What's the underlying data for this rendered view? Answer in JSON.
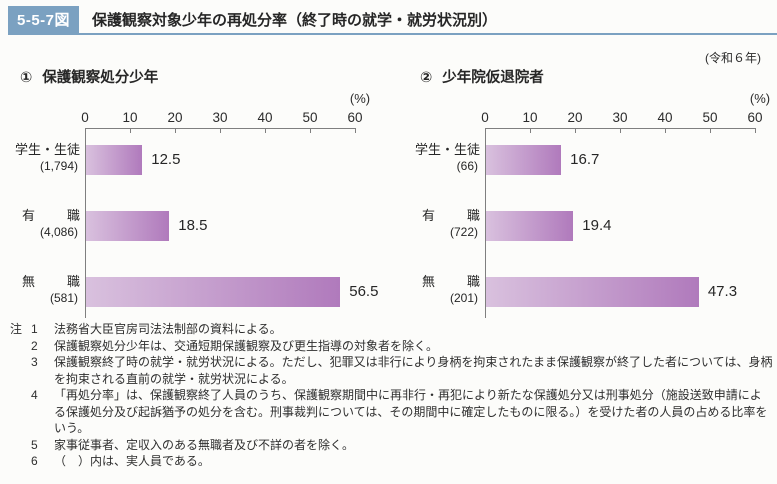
{
  "header": {
    "figure_no": "5-5-7図",
    "title": "保護観察対象少年の再処分率（終了時の就学・就労状況別）",
    "year_label": "(令和６年)"
  },
  "charts": [
    {
      "heading_no": "①",
      "heading": "保護観察処分少年",
      "unit": "(%)",
      "axis_ticks": [
        0,
        10,
        20,
        30,
        40,
        50,
        60
      ],
      "rows": [
        {
          "label": [
            "学生・生徒"
          ],
          "count": "(1,794)",
          "value": 12.5
        },
        {
          "label": [
            "有",
            "職"
          ],
          "count": "(4,086)",
          "value": 18.5
        },
        {
          "label": [
            "無",
            "職"
          ],
          "count": "(581)",
          "value": 56.5
        }
      ]
    },
    {
      "heading_no": "②",
      "heading": "少年院仮退院者",
      "unit": "(%)",
      "axis_ticks": [
        0,
        10,
        20,
        30,
        40,
        50,
        60
      ],
      "rows": [
        {
          "label": [
            "学生・生徒"
          ],
          "count": "(66)",
          "value": 16.7
        },
        {
          "label": [
            "有",
            "職"
          ],
          "count": "(722)",
          "value": 19.4
        },
        {
          "label": [
            "無",
            "職"
          ],
          "count": "(201)",
          "value": 47.3
        }
      ]
    }
  ],
  "chart_data": [
    {
      "type": "bar",
      "orientation": "horizontal",
      "title": "① 保護観察処分少年",
      "categories": [
        "学生・生徒 (1,794)",
        "有職 (4,086)",
        "無職 (581)"
      ],
      "values": [
        12.5,
        18.5,
        56.5
      ],
      "xlabel": "(%)",
      "xlim": [
        0,
        60
      ],
      "xticks": [
        0,
        10,
        20,
        30,
        40,
        50,
        60
      ],
      "grid": false,
      "data_labels": [
        "12.5",
        "18.5",
        "56.5"
      ]
    },
    {
      "type": "bar",
      "orientation": "horizontal",
      "title": "② 少年院仮退院者",
      "categories": [
        "学生・生徒 (66)",
        "有職 (722)",
        "無職 (201)"
      ],
      "values": [
        16.7,
        19.4,
        47.3
      ],
      "xlabel": "(%)",
      "xlim": [
        0,
        60
      ],
      "xticks": [
        0,
        10,
        20,
        30,
        40,
        50,
        60
      ],
      "grid": false,
      "data_labels": [
        "16.7",
        "19.4",
        "47.3"
      ]
    }
  ],
  "notes": {
    "prefix": "注",
    "items": [
      {
        "num": "1",
        "text": "法務省大臣官房司法法制部の資料による。"
      },
      {
        "num": "2",
        "text": "保護観察処分少年は、交通短期保護観察及び更生指導の対象者を除く。"
      },
      {
        "num": "3",
        "text": "保護観察終了時の就学・就労状況による。ただし、犯罪又は非行により身柄を拘束されたまま保護観察が終了した者については、身柄を拘束される直前の就学・就労状況による。"
      },
      {
        "num": "4",
        "text": "「再処分率」は、保護観察終了人員のうち、保護観察期間中に再非行・再犯により新たな保護処分又は刑事処分（施設送致申請による保護処分及び起訴猶予の処分を含む。刑事裁判については、その期間中に確定したものに限る。）を受けた者の人員の占める比率をいう。"
      },
      {
        "num": "5",
        "text": "家事従事者、定収入のある無職者及び不詳の者を除く。"
      },
      {
        "num": "6",
        "text": "（　）内は、実人員である。"
      }
    ]
  },
  "colors": {
    "accent_blue": "#7ba1c1",
    "bar_gradient_start": "#d9c1de",
    "bar_gradient_end": "#b07abc",
    "axis_gray": "#7f7f7f",
    "text": "#2b2b2b"
  }
}
